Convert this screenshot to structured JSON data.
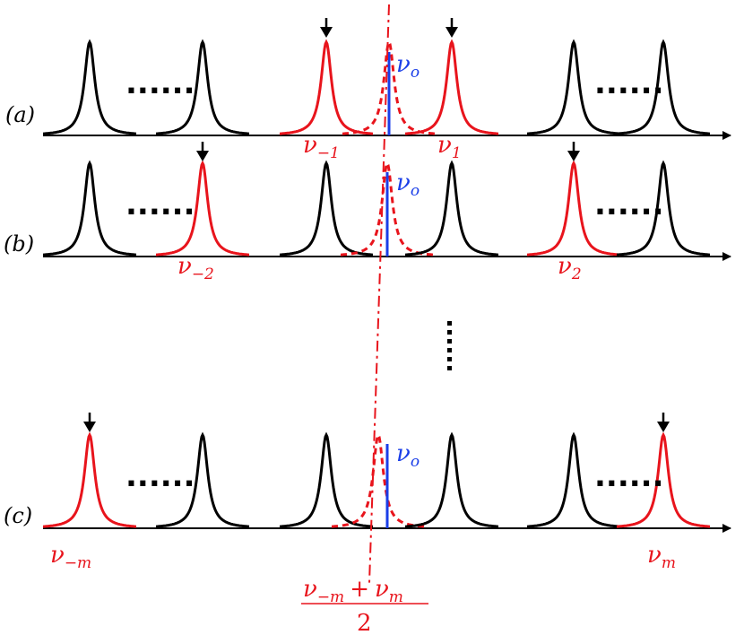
{
  "colors": {
    "black": "#000000",
    "red": "#e8141c",
    "blue": "#1a3ee8"
  },
  "rows": [
    {
      "id": "a",
      "label": "(a)",
      "dots_left": "......",
      "dots_right": "......",
      "nu_o": {
        "base": "ν",
        "sub": "o"
      },
      "left_label": {
        "base": "ν",
        "sub": "−1"
      },
      "right_label": {
        "base": "ν",
        "sub": "1"
      }
    },
    {
      "id": "b",
      "label": "(b)",
      "dots_left": "......",
      "dots_right": "......",
      "nu_o": {
        "base": "ν",
        "sub": "o"
      },
      "left_label": {
        "base": "ν",
        "sub": "−2"
      },
      "right_label": {
        "base": "ν",
        "sub": "2"
      }
    },
    {
      "id": "c",
      "label": "(c)",
      "dots_left": "......",
      "dots_right": "......",
      "nu_o": {
        "base": "ν",
        "sub": "o"
      },
      "left_label": {
        "base": "ν",
        "sub": "−m"
      },
      "right_label": {
        "base": "ν",
        "sub": "m"
      }
    }
  ],
  "fraction": {
    "numerator": {
      "a": "ν",
      "a_sub": "−m",
      "op": "+",
      "b": "ν",
      "b_sub": "m"
    },
    "denominator": "2"
  }
}
